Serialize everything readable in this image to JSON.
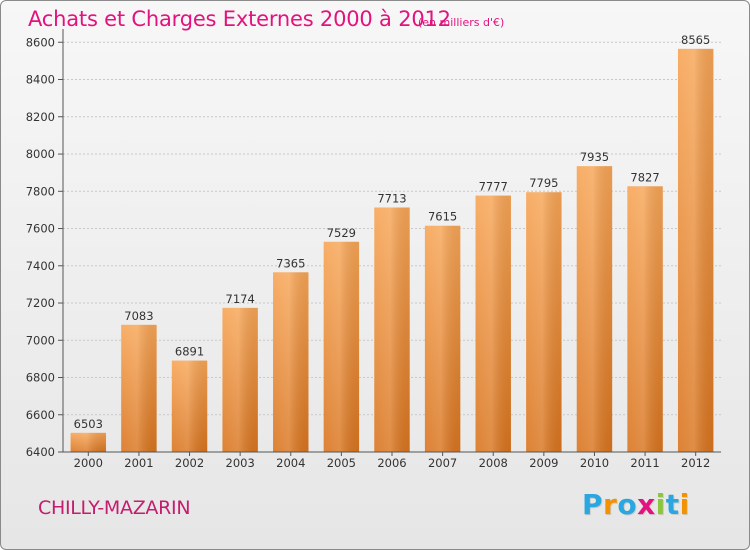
{
  "chart": {
    "title": "Achats et Charges Externes 2000 à 2012",
    "unit": "(en milliers d'€)",
    "location": "CHILLY-MAZARIN",
    "brand": "Proxiti",
    "brand_letters": [
      {
        "char": "P",
        "color": "#2aa7e0"
      },
      {
        "char": "r",
        "color": "#f39200"
      },
      {
        "char": "o",
        "color": "#2aa7e0"
      },
      {
        "char": "x",
        "color": "#e2137e"
      },
      {
        "char": "i",
        "color": "#8cc63e"
      },
      {
        "char": "t",
        "color": "#2aa7e0"
      },
      {
        "char": "i",
        "color": "#f39200"
      }
    ],
    "colors": {
      "bar_top": "#f7a556",
      "bar_bottom": "#d9741e",
      "title": "#e2137e",
      "grid": "#c8c8c8",
      "axis": "#555555",
      "text": "#333333"
    }
  },
  "chart_data": {
    "type": "bar",
    "categories": [
      "2000",
      "2001",
      "2002",
      "2003",
      "2004",
      "2005",
      "2006",
      "2007",
      "2008",
      "2009",
      "2010",
      "2011",
      "2012"
    ],
    "values": [
      6503,
      7083,
      6891,
      7174,
      7365,
      7529,
      7713,
      7615,
      7777,
      7795,
      7935,
      7827,
      8565
    ],
    "title": "Achats et Charges Externes 2000 à 2012",
    "xlabel": "",
    "ylabel": "",
    "ylim": [
      6400,
      8650
    ],
    "yticks": [
      6400,
      6600,
      6800,
      7000,
      7200,
      7400,
      7600,
      7800,
      8000,
      8200,
      8400,
      8600
    ],
    "grid": true,
    "data_labels": true
  }
}
